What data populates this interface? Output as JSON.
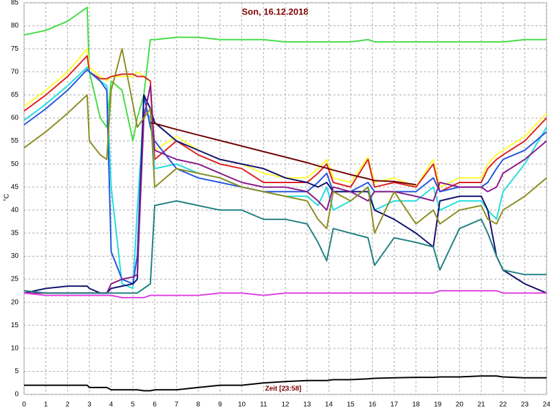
{
  "chart_data": {
    "type": "line",
    "title": "Son, 16.12.2018",
    "x_label": "Zeit [23:58]",
    "y_label": "°C",
    "xlim": [
      0,
      24
    ],
    "ylim": [
      0,
      85
    ],
    "xticks": [
      0,
      1,
      2,
      3,
      4,
      5,
      6,
      7,
      8,
      9,
      10,
      11,
      12,
      13,
      14,
      15,
      16,
      17,
      18,
      19,
      20,
      21,
      22,
      23,
      24
    ],
    "yticks": [
      0,
      5,
      10,
      15,
      20,
      25,
      30,
      35,
      40,
      45,
      50,
      55,
      60,
      65,
      70,
      75,
      80,
      85
    ],
    "grid": true,
    "x": [
      0,
      1,
      2,
      2.9,
      3,
      3.5,
      3.8,
      4,
      4.5,
      5,
      5.2,
      5.5,
      5.8,
      6,
      7,
      8,
      9,
      10,
      11,
      12,
      13,
      13.5,
      13.9,
      14.2,
      15,
      15.8,
      16.1,
      17,
      18,
      18.8,
      19.1,
      20,
      21,
      21.3,
      21.7,
      22,
      23,
      24
    ],
    "series": [
      {
        "color": "#44dd44",
        "values": [
          78,
          79,
          81,
          84,
          70,
          60,
          58,
          68,
          66,
          55,
          60,
          65,
          77,
          77,
          77.5,
          77.5,
          77,
          77,
          77,
          76.5,
          76.5,
          76.5,
          76.5,
          76.5,
          76.5,
          77,
          76.5,
          76.5,
          76.5,
          76.5,
          76.5,
          76.5,
          76.5,
          76.5,
          76.5,
          76.5,
          77,
          77
        ]
      },
      {
        "color": "#ffff33",
        "values": [
          62.5,
          66,
          70,
          75,
          71,
          69,
          68,
          69,
          69,
          69,
          70,
          69,
          68,
          53,
          56,
          53,
          51,
          50,
          48,
          47,
          47,
          49,
          51,
          47,
          46,
          51.5,
          46,
          47,
          45,
          51,
          45,
          47,
          47,
          50,
          52,
          53,
          56,
          61
        ]
      },
      {
        "color": "#dd2020",
        "values": [
          61.5,
          65,
          69,
          73.5,
          70,
          68.5,
          68.5,
          69,
          69.5,
          69.5,
          69,
          69,
          68,
          51,
          55,
          52,
          50,
          49,
          46,
          46,
          46,
          48,
          50,
          46,
          45,
          51,
          45,
          46,
          45,
          50,
          44,
          46,
          46,
          49,
          51,
          52,
          55,
          60
        ]
      },
      {
        "color": "#22dddd",
        "values": [
          59.5,
          63,
          67,
          71,
          70,
          68,
          67,
          45,
          24,
          23,
          40,
          62,
          60,
          49,
          50,
          48,
          47,
          45,
          44,
          43,
          43,
          41,
          45,
          40,
          42,
          45,
          40,
          42,
          42,
          45,
          40,
          42,
          42,
          40,
          38,
          44,
          50,
          58
        ]
      },
      {
        "color": "#2255dd",
        "values": [
          58.5,
          62,
          66,
          70.5,
          70,
          68,
          66,
          31,
          25,
          24,
          30,
          65,
          58,
          55,
          49,
          47,
          46,
          45,
          44,
          44,
          44,
          46,
          48,
          44,
          44,
          46,
          44,
          44,
          44,
          47,
          44,
          45,
          45,
          46,
          49,
          51,
          53,
          57
        ]
      },
      {
        "color": "#101070",
        "values": [
          22,
          23,
          23.5,
          23.5,
          23,
          22,
          22,
          23,
          23.5,
          24,
          25,
          65,
          62,
          59,
          55,
          53,
          51,
          50,
          49,
          47,
          46,
          45,
          46,
          44,
          44,
          44,
          40,
          38,
          35,
          32,
          42,
          43,
          43,
          40,
          30,
          27,
          24,
          22
        ]
      },
      {
        "color": "#8a1a8a",
        "values": [
          22,
          22,
          22,
          22,
          22,
          22,
          22,
          24,
          25,
          25.5,
          26,
          60,
          67,
          53,
          51,
          50,
          48,
          46,
          45,
          45,
          44,
          42,
          40,
          45,
          44,
          42,
          44,
          44,
          43,
          42,
          46,
          45,
          45,
          44,
          45,
          48,
          51,
          55
        ]
      },
      {
        "color": "#8c8c20",
        "values": [
          53.5,
          57,
          61,
          65,
          55,
          52,
          51,
          66,
          75,
          63,
          58,
          60,
          62,
          45,
          49,
          48,
          47,
          45,
          44,
          43,
          42,
          38,
          36,
          44,
          42,
          45,
          35,
          44,
          37,
          40,
          37,
          40,
          41,
          38,
          37,
          40,
          43,
          47
        ]
      },
      {
        "color": "#208080",
        "values": [
          22.5,
          22,
          22,
          22,
          22,
          22,
          22,
          22,
          22,
          22,
          22,
          23,
          24,
          41,
          42,
          41,
          40,
          40,
          38,
          38,
          37,
          33,
          29,
          36,
          35,
          34,
          28,
          34,
          33,
          32,
          27,
          36,
          38,
          35,
          30,
          27,
          26,
          26
        ]
      },
      {
        "color": "#e040e0",
        "values": [
          22,
          21.5,
          21.5,
          21.5,
          21.5,
          21.5,
          21.5,
          21.5,
          21,
          21,
          21,
          21,
          21.5,
          21.5,
          21.5,
          21.5,
          22,
          22,
          21.5,
          22,
          22,
          22,
          22,
          22,
          22,
          22,
          22,
          22,
          22,
          22,
          22.5,
          22.5,
          22.5,
          22.5,
          22.5,
          22,
          22,
          22
        ]
      },
      {
        "color": "#700000",
        "values": [
          null,
          null,
          null,
          null,
          null,
          null,
          null,
          null,
          null,
          null,
          null,
          null,
          59,
          58.8,
          57.5,
          56.3,
          55.1,
          53.9,
          52.7,
          51.5,
          50.3,
          49.6,
          49.1,
          48.7,
          47.7,
          46.8,
          46.4,
          46.2,
          45.5,
          null,
          null,
          null,
          null,
          null,
          null,
          null,
          null,
          null
        ]
      },
      {
        "color": "#000000",
        "values": [
          2,
          2,
          2,
          2,
          1.5,
          1.5,
          1.5,
          1,
          1,
          1,
          1,
          0.8,
          0.8,
          1,
          1,
          1.5,
          2,
          2,
          2.5,
          2.8,
          3,
          3,
          3,
          3.2,
          3.2,
          3.4,
          3.5,
          3.6,
          3.7,
          3.7,
          3.8,
          3.8,
          4,
          4,
          4,
          3.8,
          3.6,
          3.6
        ]
      }
    ]
  }
}
